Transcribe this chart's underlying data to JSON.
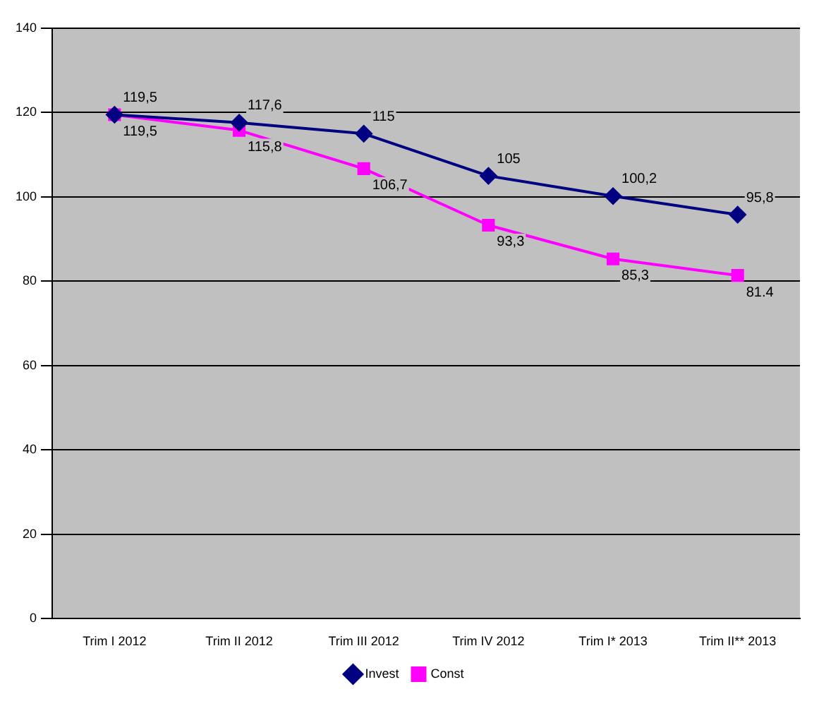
{
  "chart_data": {
    "type": "line",
    "categories": [
      "Trim I 2012",
      "Trim II 2012",
      "Trim III 2012",
      "Trim IV 2012",
      "Trim I* 2013",
      "Trim II** 2013"
    ],
    "series": [
      {
        "name": "Invest",
        "color": "#000080",
        "marker": "diamond",
        "values": [
          119.5,
          117.6,
          115,
          105,
          100.2,
          95.8
        ],
        "value_labels": [
          "119,5",
          "117,6",
          "115",
          "105",
          "100,2",
          "95,8"
        ]
      },
      {
        "name": "Const",
        "color": "#ff00ff",
        "marker": "square",
        "values": [
          119.5,
          115.8,
          106.7,
          93.3,
          85.3,
          81.4
        ],
        "value_labels": [
          "119,5",
          "115,8",
          "106,7",
          "93,3",
          "85,3",
          "81.4"
        ]
      }
    ],
    "ylim": [
      0,
      140
    ],
    "yticks": [
      0,
      20,
      40,
      60,
      80,
      100,
      120,
      140
    ],
    "grid": "y",
    "legend": "bottom"
  }
}
